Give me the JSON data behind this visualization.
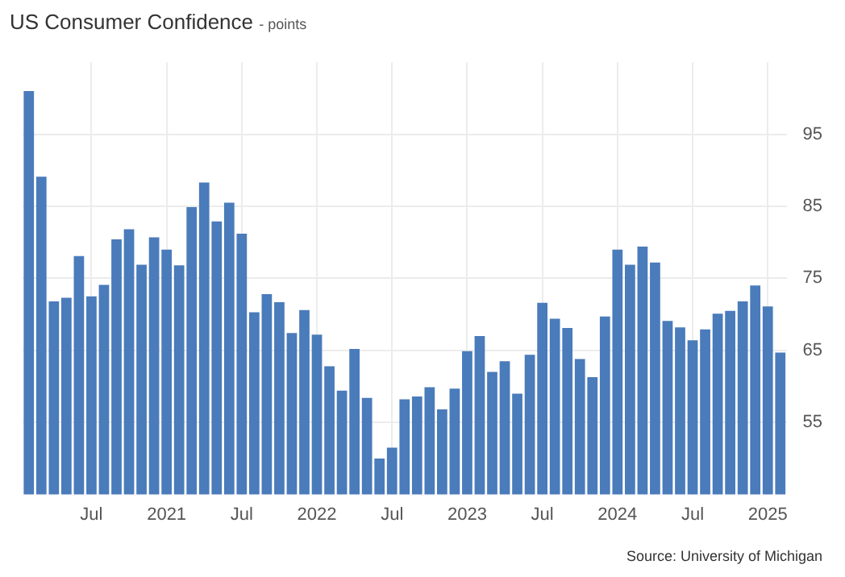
{
  "chart_data": {
    "type": "bar",
    "title": "US Consumer Confidence",
    "subtitle": "- points",
    "categories": [
      null,
      null,
      null,
      null,
      null,
      "Jul",
      null,
      null,
      null,
      null,
      null,
      "2021",
      null,
      null,
      null,
      null,
      null,
      "Jul",
      null,
      null,
      null,
      null,
      null,
      "2022",
      null,
      null,
      null,
      null,
      null,
      "Jul",
      null,
      null,
      null,
      null,
      null,
      "2023",
      null,
      null,
      null,
      null,
      null,
      "Jul",
      null,
      null,
      null,
      null,
      null,
      "2024",
      null,
      null,
      null,
      null,
      null,
      "Jul",
      null,
      null,
      null,
      null,
      null,
      "2025",
      null
    ],
    "values": [
      101.0,
      89.1,
      71.8,
      72.3,
      78.1,
      72.5,
      74.1,
      80.4,
      81.8,
      76.9,
      80.7,
      79.0,
      76.8,
      84.9,
      88.3,
      82.9,
      85.5,
      81.2,
      70.3,
      72.8,
      71.7,
      67.4,
      70.6,
      67.2,
      62.8,
      59.4,
      65.2,
      58.4,
      50.0,
      51.5,
      58.2,
      58.6,
      59.9,
      56.8,
      59.7,
      64.9,
      67.0,
      62.0,
      63.5,
      59.0,
      64.4,
      71.6,
      69.4,
      68.1,
      63.8,
      61.3,
      69.7,
      79.0,
      76.9,
      79.4,
      77.2,
      69.1,
      68.2,
      66.4,
      67.9,
      70.1,
      70.5,
      71.8,
      74.0,
      71.1,
      64.7
    ],
    "color": "#4a7bba",
    "ylim": [
      45,
      105
    ],
    "yticks": [
      55,
      65,
      75,
      85,
      95
    ],
    "grid": true,
    "legend": false,
    "annotations": [
      "Source: University of Michigan"
    ]
  }
}
